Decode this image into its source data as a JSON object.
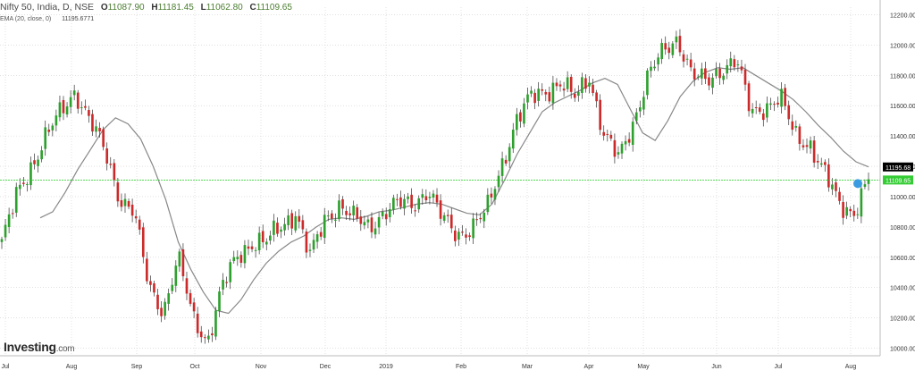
{
  "header": {
    "symbol": "Nifty 50, India, D, NSE",
    "open_label": "O",
    "open": "11087.90",
    "high_label": "H",
    "high": "11181.45",
    "low_label": "L",
    "low": "11062.80",
    "close_label": "C",
    "close": "11109.65",
    "ema_label": "EMA (20, close, 0)",
    "ema_value": "11195.6771"
  },
  "brand": {
    "name": "Investing",
    "suffix": ".com"
  },
  "colors": {
    "up": "#2ea02e",
    "down": "#cc2a2a",
    "ema": "#888888",
    "current_line": "#22cc22",
    "grid": "#cfcfcf",
    "ema_tag_bg": "#000000",
    "price_tag_bg": "#33cc33",
    "marker": "#3b9be0"
  },
  "chart_data": {
    "type": "candlestick",
    "title": "Nifty 50, India, D, NSE",
    "ylim": [
      9950,
      12250
    ],
    "y_ticks": [
      "12200.00",
      "12000.00",
      "11800.00",
      "11600.00",
      "11400.00",
      "11200.00",
      "11000.00",
      "10800.00",
      "10600.00",
      "10400.00",
      "10200.00",
      "10000.00"
    ],
    "x_ticks": [
      "Jul",
      "Aug",
      "Sep",
      "Oct",
      "Nov",
      "Dec",
      "2019",
      "Feb",
      "Mar",
      "Apr",
      "May",
      "Jun",
      "Jul",
      "Aug"
    ],
    "current_price": "11109.65",
    "ema_current": "11195.68",
    "series": [
      {
        "name": "Nifty 50",
        "close_path": [
          [
            "Jul",
            10700
          ],
          [
            "Jul",
            11000
          ],
          [
            "Aug",
            11200
          ],
          [
            "Aug",
            11400
          ],
          [
            "Aug",
            11550
          ],
          [
            "Sep",
            11700
          ],
          [
            "Sep",
            11500
          ],
          [
            "Sep",
            11300
          ],
          [
            "Sep",
            11000
          ],
          [
            "Oct",
            10900
          ],
          [
            "Oct",
            10400
          ],
          [
            "Oct",
            10250
          ],
          [
            "Oct",
            10600
          ],
          [
            "Oct",
            10200
          ],
          [
            "Oct",
            10050
          ],
          [
            "Nov",
            10400
          ],
          [
            "Nov",
            10600
          ],
          [
            "Nov",
            10700
          ],
          [
            "Nov",
            10700
          ],
          [
            "Dec",
            10800
          ],
          [
            "Dec",
            10900
          ],
          [
            "Dec",
            10600
          ],
          [
            "Dec",
            10850
          ],
          [
            "2019",
            10950
          ],
          [
            "2019",
            10850
          ],
          [
            "2019",
            10800
          ],
          [
            "2019",
            10900
          ],
          [
            "2019",
            10950
          ],
          [
            "Feb",
            10950
          ],
          [
            "Feb",
            11050
          ],
          [
            "Feb",
            10850
          ],
          [
            "Feb",
            10750
          ],
          [
            "Mar",
            10800
          ],
          [
            "Mar",
            10900
          ],
          [
            "Mar",
            11200
          ],
          [
            "Mar",
            11500
          ],
          [
            "Apr",
            11650
          ],
          [
            "Apr",
            11700
          ],
          [
            "Apr",
            11750
          ],
          [
            "Apr",
            11650
          ],
          [
            "May",
            11800
          ],
          [
            "May",
            11400
          ],
          [
            "May",
            11250
          ],
          [
            "May",
            11500
          ],
          [
            "Jun",
            11800
          ],
          [
            "Jun",
            11950
          ],
          [
            "Jun",
            12050
          ],
          [
            "Jun",
            11800
          ],
          [
            "Jun",
            11750
          ],
          [
            "Jun",
            11850
          ],
          [
            "Jul",
            11900
          ],
          [
            "Jul",
            11550
          ],
          [
            "Jul",
            11600
          ],
          [
            "Jul",
            11650
          ],
          [
            "Jul",
            11400
          ],
          [
            "Jul",
            11350
          ],
          [
            "Jul",
            11150
          ],
          [
            "Aug",
            10950
          ],
          [
            "Aug",
            10900
          ],
          [
            "Aug",
            11110
          ]
        ]
      },
      {
        "name": "EMA (20, close, 0)",
        "values": [
          10860,
          10900,
          11030,
          11180,
          11310,
          11440,
          11520,
          11480,
          11380,
          11200,
          10980,
          10700,
          10520,
          10370,
          10250,
          10230,
          10320,
          10450,
          10560,
          10640,
          10700,
          10740,
          10800,
          10850,
          10860,
          10850,
          10870,
          10900,
          10910,
          10930,
          10950,
          10960,
          10950,
          10920,
          10890,
          10880,
          10950,
          11110,
          11280,
          11420,
          11560,
          11620,
          11660,
          11700,
          11750,
          11780,
          11740,
          11580,
          11420,
          11370,
          11500,
          11660,
          11760,
          11820,
          11850,
          11840,
          11850,
          11800,
          11750,
          11700,
          11640,
          11560,
          11470,
          11390,
          11300,
          11230,
          11196
        ]
      }
    ]
  }
}
